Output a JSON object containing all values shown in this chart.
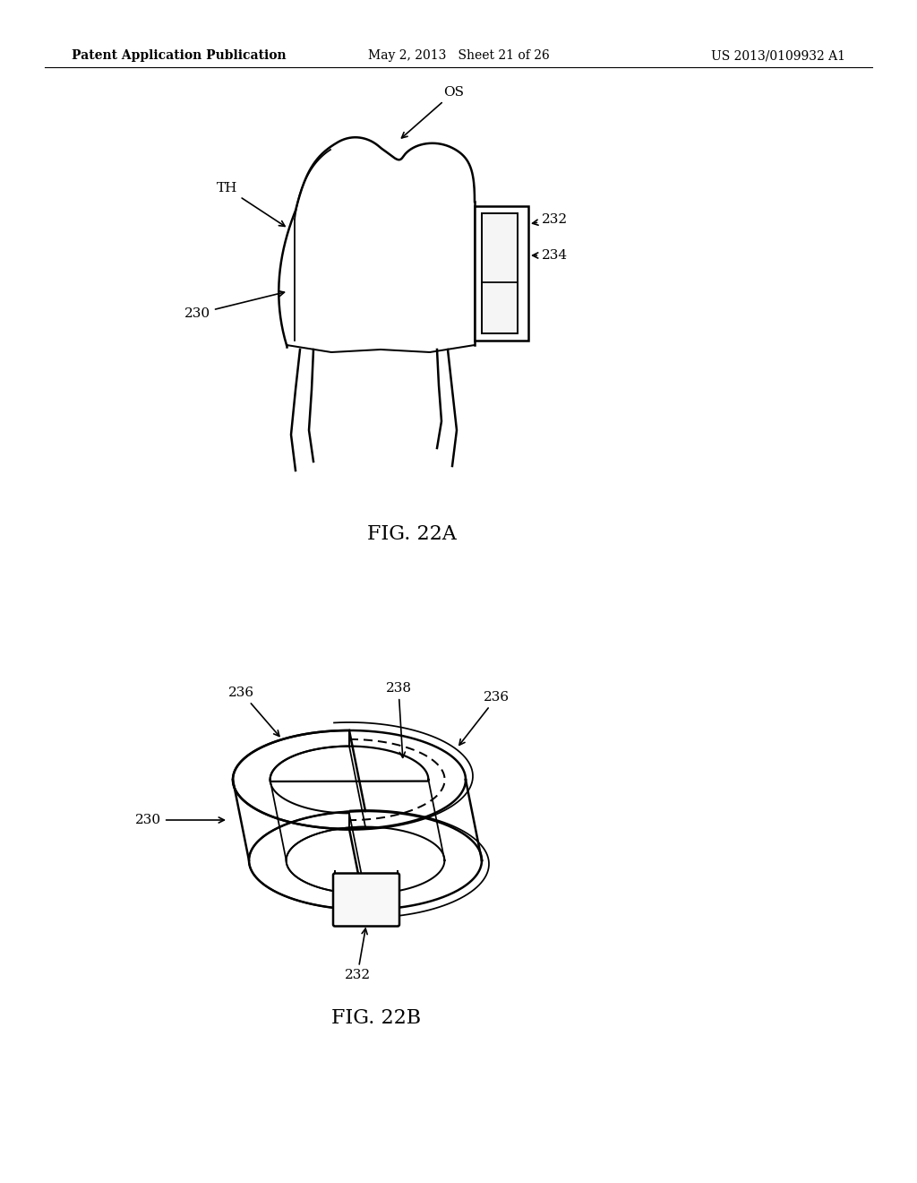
{
  "header_left": "Patent Application Publication",
  "header_mid": "May 2, 2013   Sheet 21 of 26",
  "header_right": "US 2013/0109932 A1",
  "fig_a_label": "FIG. 22A",
  "fig_b_label": "FIG. 22B",
  "line_color": "#000000",
  "bg_color": "#ffffff",
  "text_color": "#000000",
  "header_fontsize": 10,
  "label_fontsize": 11,
  "fig_label_fontsize": 16
}
